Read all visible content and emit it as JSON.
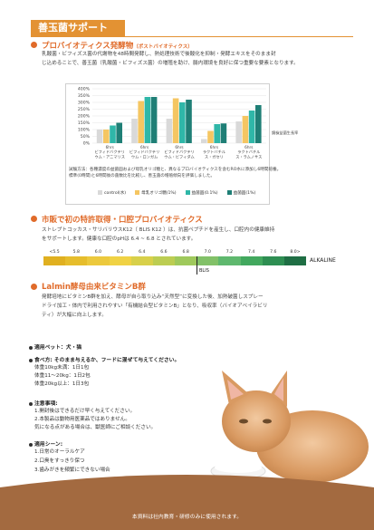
{
  "header": {
    "title": "善玉菌サポート"
  },
  "probiotics": {
    "title": "プロバイオティクス発酵物",
    "subtitle": "（ポストバイオティクス）",
    "desc1": "乳酸菌・ビフィズス菌の代謝物を48時間発酵し、熱処理技術で後酸化を抑制・発酵エキスをそのまま封",
    "desc2": "じ込めることで、善玉菌（乳酸菌・ビフィズス菌）の増殖を助け、腸内環境を良好に保つ重要な要素となります。"
  },
  "chart_data": {
    "type": "bar",
    "categories": [
      "ビフィドバクテリウム・アニマリス",
      "ビフィドバクテリウム・ロンガム",
      "ビフィドバクテリウム・ビフィダム",
      "ラクトバチルス・ガセリ",
      "ラクトバチルス・ラムノサス"
    ],
    "category_lines": [
      [
        "6hrs",
        "ビフィドバクテリ",
        "ウム・アニマリス"
      ],
      [
        "6hrs",
        "ビフィドバクテリ",
        "ウム・ロンガム"
      ],
      [
        "6hrs",
        "ビフィドバクテリ",
        "ウム・ビフィダム"
      ],
      [
        "6hrs",
        "ラクトバチル",
        "ス・ガセリ"
      ],
      [
        "6hrs",
        "ラクトバチル",
        "ス・ラムノサス"
      ]
    ],
    "series": [
      {
        "name": "control(水)",
        "color": "#d9d9d9",
        "values": [
          100,
          180,
          180,
          30,
          160
        ]
      },
      {
        "name": "母乳オリゴ糖(1%)",
        "color": "#f5c662",
        "values": [
          100,
          310,
          330,
          90,
          200
        ]
      },
      {
        "name": "益菌圓(0.1%)",
        "color": "#2fb7a8",
        "values": [
          130,
          340,
          300,
          140,
          240
        ]
      },
      {
        "name": "益菌圓(1%)",
        "color": "#1f7f76",
        "values": [
          150,
          340,
          320,
          145,
          280
        ]
      }
    ],
    "ylim": [
      0,
      400
    ],
    "yticks": [
      0,
      50,
      100,
      150,
      200,
      250,
      300,
      350,
      400
    ],
    "ytick_labels": [
      "0%",
      "50%",
      "100%",
      "150%",
      "200%",
      "250%",
      "300%",
      "350%",
      "400%"
    ],
    "baseline_label": "鏡檢益菌生長率",
    "note1": "試験方法：各種濃度の益菌圓および母乳オリゴ糖と、異なるプロバイオティクスを含むRO水に添加し6時間培養。",
    "note2": "標準(0時間)と6時間後の菌数比を比較し、善玉菌の増殖傾向を評価しました。"
  },
  "k12": {
    "title": "市販で初の特許取得・口腔プロバイオティクス",
    "desc1": "ストレプトコッカス・サリバリウスK12（ BLIS K12 ）は、抗菌ペプチドを産生し、口腔内の健康維持",
    "desc2": "をサポートします。健康な口腔のpHは 6.4 ~ 6.8 とされています。",
    "ph_labels": [
      "<5.5",
      "5.8",
      "6.0",
      "6.2",
      "6.4",
      "6.6",
      "6.8",
      "7.0",
      "7.2",
      "7.4",
      "7.6",
      "8.0>"
    ],
    "ph_colors": [
      "#e0b020",
      "#e6bd2c",
      "#ecc93d",
      "#f0d244",
      "#d8d04a",
      "#bccd52",
      "#9fc95c",
      "#82c168",
      "#5fb86e",
      "#42a85e",
      "#2e8e52",
      "#1f6e44"
    ],
    "alkaline_label": "ALKALINE",
    "blis_label": "BLIS"
  },
  "lalmin": {
    "title": "Lalmin酵母由来ビタミンB群",
    "desc1": "発酵培地にビタミンB群を加え、酵母が自ら取り込み“天然型”に変換した後、加熱破菌しスプレー",
    "desc2": "ドライ加工・体内で利用されやすい「有機結合型ビタミンB」となり、吸収率（バイオアベイラビリ",
    "desc3": "ティ）が大幅に向上します。"
  },
  "info": {
    "pet_label": "適用ペット：犬・猫",
    "usage_label": "食べ方: そのまま与えるか、フードに混ぜて与えてください。",
    "usage_lines": [
      "体重10kg未満：1日1包",
      "体重11～20kg：1日2包",
      "体重20kg以上：1日3包"
    ],
    "caution_label": "注意事項:",
    "caution_lines": [
      "1.開封後はできるだけ早く与えてください。",
      "2.本製品は動物用医薬品ではありません。",
      "気になる点がある場合は、獣医師にご相談ください。"
    ],
    "scene_label": "適用シーン:",
    "scene_lines": [
      "1.日常のオーラルケア",
      "2.口臭をすっきり保つ",
      "3.歯みがきを頻繁にできない場合"
    ]
  },
  "footer": {
    "text": "本資料は社内教育・研修のみに使用されます。",
    "color": "#a36a40"
  }
}
